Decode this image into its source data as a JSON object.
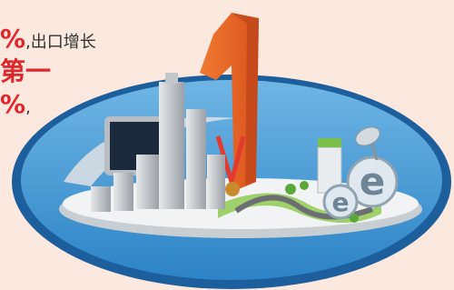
{
  "text": {
    "line1": {
      "highlight": "%",
      "rest": ",出口增长"
    },
    "line2": "第一",
    "line3": {
      "highlight": "%",
      "rest": ","
    }
  }
}
